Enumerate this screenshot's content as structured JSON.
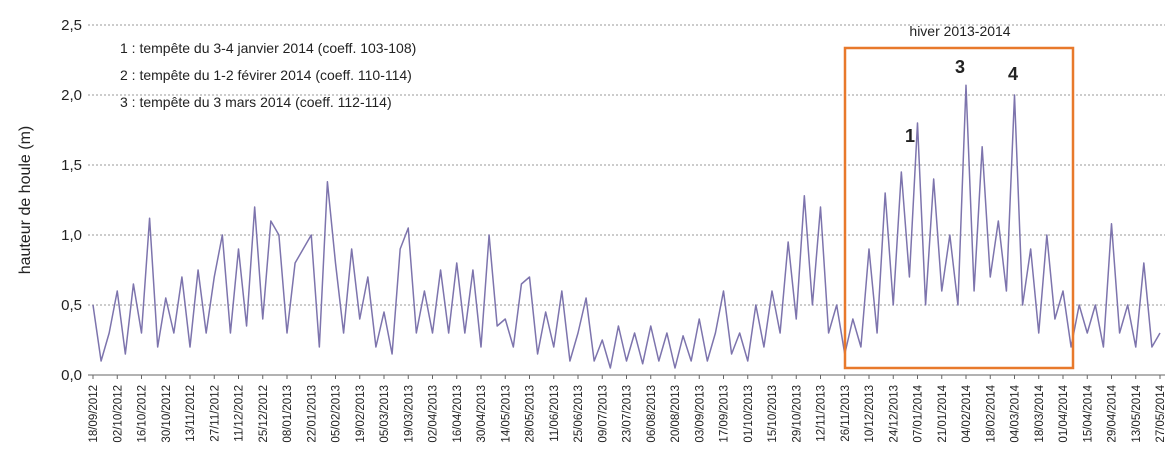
{
  "chart_data": {
    "type": "line",
    "y_label": "hauteur de houle (m)",
    "annotations": [
      "1 : tempête du 3-4 janvier 2014 (coeff. 103-108)",
      "2 : tempête du 1-2 févirer 2014 (coeff. 110-114)",
      "3 : tempête du 3 mars 2014 (coeff. 112-114)",
      "hiver 2013-2014",
      "1",
      "3",
      "4"
    ],
    "categories": [
      "18/09/2012",
      null,
      null,
      "02/10/2012",
      null,
      null,
      "16/10/2012",
      null,
      null,
      "30/10/2012",
      null,
      null,
      "13/11/2012",
      null,
      null,
      "27/11/2012",
      null,
      null,
      "11/12/2012",
      null,
      null,
      "25/12/2012",
      null,
      null,
      "08/01/2013",
      null,
      null,
      "22/01/2013",
      null,
      null,
      "05/02/2013",
      null,
      null,
      "19/02/2013",
      null,
      null,
      "05/03/2013",
      null,
      null,
      "19/03/2013",
      null,
      null,
      "02/04/2013",
      null,
      null,
      "16/04/2013",
      null,
      null,
      "30/04/2013",
      null,
      null,
      "14/05/2013",
      null,
      null,
      "28/05/2013",
      null,
      null,
      "11/06/2013",
      null,
      null,
      "25/06/2013",
      null,
      null,
      "09/07/2013",
      null,
      null,
      "23/07/2013",
      null,
      null,
      "06/08/2013",
      null,
      null,
      "20/08/2013",
      null,
      null,
      "03/09/2013",
      null,
      null,
      "17/09/2013",
      null,
      null,
      "01/10/2013",
      null,
      null,
      "15/10/2013",
      null,
      null,
      "29/10/2013",
      null,
      null,
      "12/11/2013",
      null,
      null,
      "26/11/2013",
      null,
      null,
      "10/12/2013",
      null,
      null,
      "24/12/2013",
      null,
      null,
      "07/01/2014",
      null,
      null,
      "21/01/2014",
      null,
      null,
      "04/02/2014",
      null,
      null,
      "18/02/2014",
      null,
      null,
      "04/03/2014",
      null,
      null,
      "18/03/2014",
      null,
      null,
      "01/04/2014",
      null,
      null,
      "15/04/2014",
      null,
      null,
      "29/04/2014",
      null,
      null,
      "13/05/2014",
      null,
      null,
      "27/05/2014"
    ],
    "series": [
      {
        "name": "hauteur de houle",
        "color": "#7d74ad",
        "values": [
          0.5,
          0.1,
          0.3,
          0.6,
          0.15,
          0.65,
          0.3,
          1.12,
          0.2,
          0.55,
          0.3,
          0.7,
          0.2,
          0.75,
          0.3,
          0.7,
          1.0,
          0.3,
          0.9,
          0.35,
          1.2,
          0.4,
          1.1,
          1.0,
          0.3,
          0.8,
          0.9,
          1.0,
          0.2,
          1.38,
          0.8,
          0.3,
          0.9,
          0.4,
          0.7,
          0.2,
          0.45,
          0.15,
          0.9,
          1.05,
          0.3,
          0.6,
          0.3,
          0.75,
          0.3,
          0.8,
          0.3,
          0.75,
          0.2,
          1.0,
          0.35,
          0.4,
          0.2,
          0.65,
          0.7,
          0.15,
          0.45,
          0.2,
          0.6,
          0.1,
          0.3,
          0.55,
          0.1,
          0.25,
          0.05,
          0.35,
          0.1,
          0.3,
          0.08,
          0.35,
          0.1,
          0.3,
          0.05,
          0.28,
          0.1,
          0.4,
          0.1,
          0.3,
          0.6,
          0.15,
          0.3,
          0.1,
          0.5,
          0.2,
          0.6,
          0.3,
          0.95,
          0.4,
          1.28,
          0.5,
          1.2,
          0.3,
          0.5,
          0.15,
          0.4,
          0.2,
          0.9,
          0.3,
          1.3,
          0.5,
          1.45,
          0.7,
          1.8,
          0.5,
          1.4,
          0.6,
          1.0,
          0.5,
          2.07,
          0.6,
          1.63,
          0.7,
          1.1,
          0.6,
          2.0,
          0.5,
          0.9,
          0.3,
          1.0,
          0.4,
          0.6,
          0.2,
          0.5,
          0.3,
          0.5,
          0.2,
          1.08,
          0.3,
          0.5,
          0.2,
          0.8,
          0.2,
          0.3
        ]
      }
    ],
    "ylim": [
      0,
      2.5
    ],
    "yticks": [
      {
        "value": 0,
        "label": "0,0"
      },
      {
        "value": 0.5,
        "label": "0,5"
      },
      {
        "value": 1,
        "label": "1,0"
      },
      {
        "value": 1.5,
        "label": "1,5"
      },
      {
        "value": 2,
        "label": "2,0"
      },
      {
        "value": 2.5,
        "label": "2,5"
      }
    ],
    "grid": true
  }
}
